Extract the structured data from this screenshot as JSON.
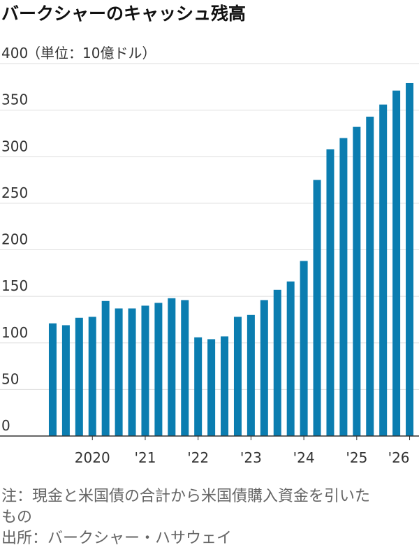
{
  "chart_data": {
    "type": "bar",
    "title": "バークシャーのキャッシュ残高",
    "unit_label": "（単位：10億ドル）",
    "categories": [
      null,
      null,
      null,
      "2020",
      null,
      null,
      null,
      "'21",
      null,
      null,
      null,
      "'22",
      null,
      null,
      null,
      "'23",
      null,
      null,
      null,
      "'24",
      null,
      null,
      null,
      "'25",
      null,
      null,
      null,
      "'26"
    ],
    "values": [
      121,
      119,
      127,
      128,
      145,
      137,
      137,
      140,
      143,
      148,
      146,
      106,
      104,
      107,
      128,
      130,
      146,
      157,
      166,
      188,
      275,
      308,
      320,
      332,
      343,
      356,
      371,
      379
    ],
    "color": "#0b7db0",
    "ylim": [
      0,
      400
    ],
    "yticks": [
      0,
      50,
      100,
      150,
      200,
      250,
      300,
      350,
      400
    ],
    "grid": true,
    "notes": [
      "注：現金と米国債の合計から米国債購入資金を引いたもの",
      "出所：バークシャー・ハサウェイ"
    ]
  }
}
